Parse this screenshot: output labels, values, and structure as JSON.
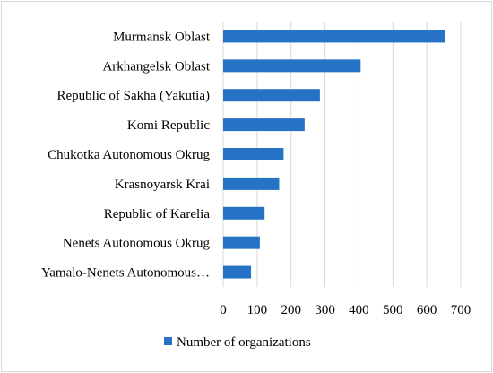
{
  "chart_data": {
    "type": "bar",
    "orientation": "horizontal",
    "categories": [
      "Murmansk Oblast",
      "Arkhangelsk Oblast",
      "Republic of Sakha (Yakutia)",
      "Komi Republic",
      "Chukotka Autonomous Okrug",
      "Krasnoyarsk Krai",
      "Republic of Karelia",
      "Nenets Autonomous Okrug",
      "Yamalo-Nenets Autonomous…"
    ],
    "series": [
      {
        "name": "Number of organizations",
        "values": [
          655,
          405,
          285,
          240,
          178,
          165,
          122,
          108,
          82
        ],
        "color": "#2673c5"
      }
    ],
    "xlim": [
      0,
      700
    ],
    "xticks": [
      0,
      100,
      200,
      300,
      400,
      500,
      600,
      700
    ],
    "grid": "vertical",
    "gridColor": "#d9d9d9",
    "legend": "bottom"
  }
}
